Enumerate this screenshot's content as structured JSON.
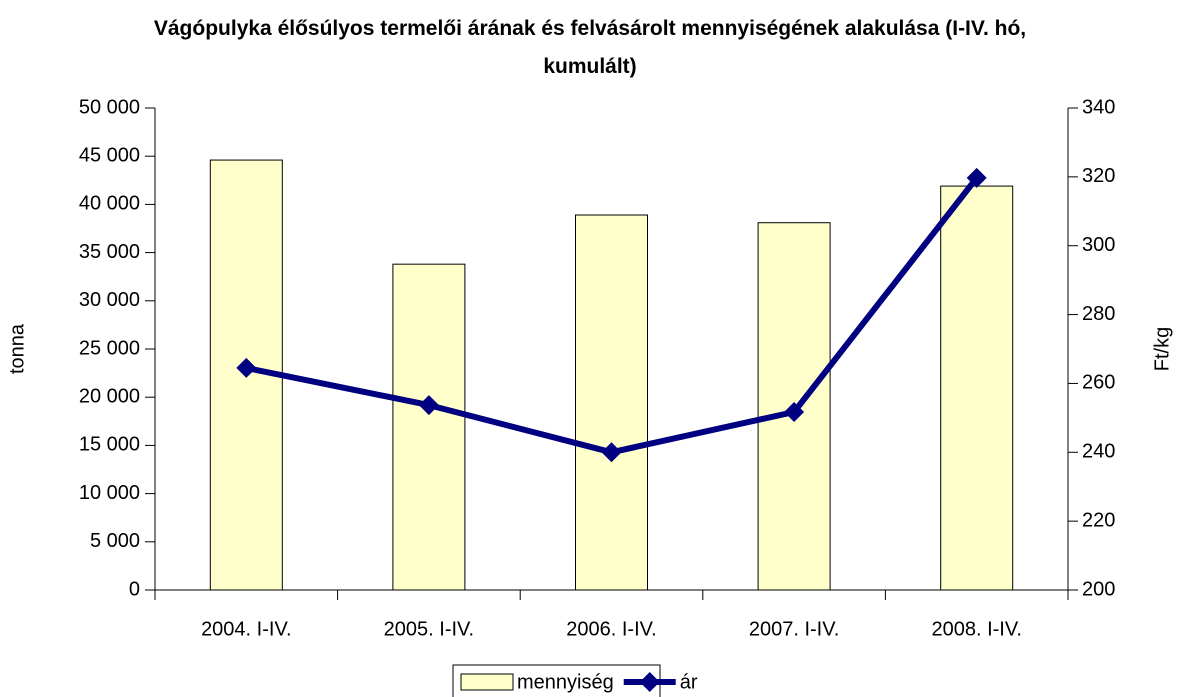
{
  "chart_data": {
    "type": "bar",
    "title": "Vágópulyka élősúlyos termelői árának és felvásárolt mennyiségének alakulása (I-IV. hó, kumulált)",
    "categories": [
      "2004. I-IV.",
      "2005. I-IV.",
      "2006. I-IV.",
      "2007. I-IV.",
      "2008. I-IV."
    ],
    "y_label": "tonna",
    "y2_label": "Ft/kg",
    "series": [
      {
        "name": "mennyiség",
        "type": "bar",
        "color": "#ffffcc",
        "values": [
          44600,
          33800,
          38900,
          38100,
          41900
        ]
      },
      {
        "name": "ár",
        "type": "line",
        "axis": "y2",
        "color": "#000080",
        "values": [
          264.5,
          253.7,
          240,
          251.7,
          319.7
        ]
      }
    ],
    "ylim": [
      0,
      50000
    ],
    "yticks": [
      {
        "value": 0,
        "label": "0"
      },
      {
        "value": 5000,
        "label": "5 000"
      },
      {
        "value": 10000,
        "label": "10 000"
      },
      {
        "value": 15000,
        "label": "15 000"
      },
      {
        "value": 20000,
        "label": "20 000"
      },
      {
        "value": 25000,
        "label": "25 000"
      },
      {
        "value": 30000,
        "label": "30 000"
      },
      {
        "value": 35000,
        "label": "35 000"
      },
      {
        "value": 40000,
        "label": "40 000"
      },
      {
        "value": 45000,
        "label": "45 000"
      },
      {
        "value": 50000,
        "label": "50 000"
      }
    ],
    "y2lim": [
      200,
      340
    ],
    "y2ticks": [
      200,
      220,
      240,
      260,
      280,
      300,
      320,
      340
    ],
    "grid": false,
    "legend": "bottom"
  }
}
